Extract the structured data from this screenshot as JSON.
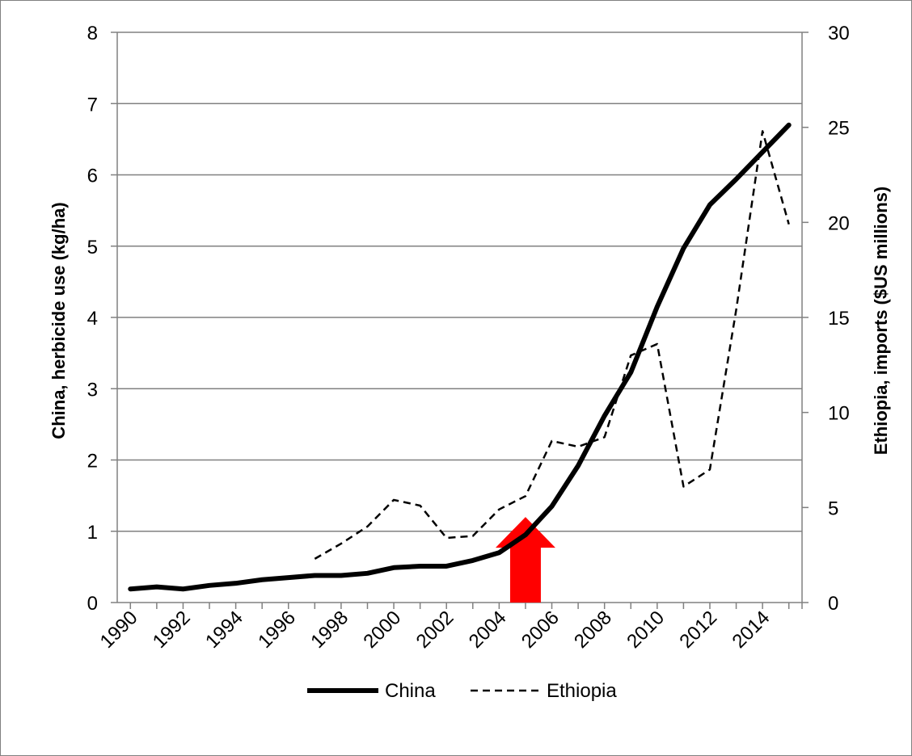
{
  "chart_data": {
    "type": "line",
    "title": "",
    "x": [
      1990,
      1991,
      1992,
      1993,
      1994,
      1995,
      1996,
      1997,
      1998,
      1999,
      2000,
      2001,
      2002,
      2003,
      2004,
      2005,
      2006,
      2007,
      2008,
      2009,
      2010,
      2011,
      2012,
      2013,
      2014,
      2015
    ],
    "xtick_labels": [
      "1990",
      "1992",
      "1994",
      "1996",
      "1998",
      "2000",
      "2002",
      "2004",
      "2006",
      "2008",
      "2010",
      "2012",
      "2014"
    ],
    "xlim": [
      1989.5,
      2015.5
    ],
    "ylabel_left": "China, herbicide use (kg/ha)",
    "ylim_left": [
      0,
      8
    ],
    "yticks_left": [
      0,
      1,
      2,
      3,
      4,
      5,
      6,
      7,
      8
    ],
    "ylabel_right": "Ethiopia, imports ($US millions)",
    "ylim_right": [
      0,
      30
    ],
    "yticks_right": [
      0,
      5,
      10,
      15,
      20,
      25,
      30
    ],
    "grid": true,
    "legend_position": "bottom-center",
    "series": [
      {
        "name": "China",
        "axis": "left",
        "style": "solid-thick",
        "color": "#000000",
        "values": [
          0.19,
          0.22,
          0.19,
          0.24,
          0.27,
          0.32,
          0.35,
          0.38,
          0.38,
          0.41,
          0.49,
          0.51,
          0.51,
          0.59,
          0.7,
          0.95,
          1.35,
          1.92,
          2.62,
          3.23,
          4.15,
          4.97,
          5.58,
          5.94,
          6.32,
          6.7
        ]
      },
      {
        "name": "Ethiopia",
        "axis": "right",
        "style": "dashed",
        "color": "#000000",
        "values": [
          null,
          null,
          null,
          null,
          null,
          null,
          null,
          2.3,
          3.1,
          4.0,
          5.4,
          5.1,
          3.4,
          3.5,
          4.9,
          5.6,
          8.5,
          8.2,
          8.7,
          13.0,
          13.6,
          6.1,
          7.0,
          15.4,
          24.8,
          19.9
        ]
      }
    ],
    "annotations": [
      {
        "type": "arrow-up",
        "color": "#ff0000",
        "x": 2005,
        "y_left_top": 1.2
      }
    ]
  }
}
